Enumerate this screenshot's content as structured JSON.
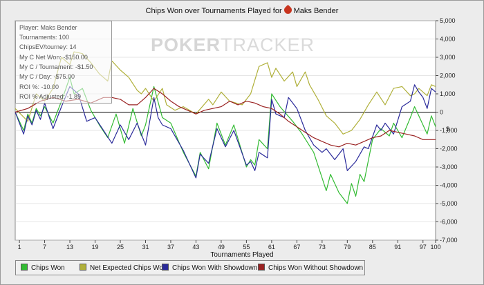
{
  "title_prefix": "Chips Won over Tournaments Played for",
  "player_name": "Maks Bender",
  "watermark": {
    "bold": "POKER",
    "light": "TRACKER"
  },
  "stats": [
    "Player: Maks Bender",
    "Tournaments: 100",
    "ChipsEV/tourney: 14",
    "My C Net Won: -$150.00",
    "My C / Tournament: -$1.50",
    "My C / Day: -$75.00",
    "ROI %: -10.00",
    "ROI % Adjusted: -1.89"
  ],
  "legend": {
    "chips_won": "Chips Won",
    "net_expected": "Net Expected Chips Won",
    "with_showdown": "Chips Won With Showdown",
    "without_showdown": "Chips Won Without Showdown"
  },
  "colors": {
    "chips_won": "#33bb33",
    "net_expected": "#b0b03a",
    "with_showdown": "#2a2a9a",
    "without_showdown": "#9a2222",
    "zero_line": "#000000",
    "grid": "#cccccc"
  },
  "chart_data": {
    "type": "line",
    "title": "Chips Won over Tournaments Played for Maks Bender",
    "xlabel": "Tournaments Played",
    "ylabel": "$",
    "xlim": [
      0,
      100
    ],
    "ylim": [
      -7000,
      5000
    ],
    "x_ticks": [
      1,
      7,
      13,
      19,
      25,
      31,
      37,
      43,
      49,
      55,
      61,
      67,
      73,
      79,
      85,
      91,
      97,
      100
    ],
    "y_ticks": [
      5000,
      4000,
      3000,
      2000,
      1000,
      0,
      -1000,
      -2000,
      -3000,
      -4000,
      -5000,
      -6000,
      -7000
    ],
    "y_tick_labels": [
      "5,000",
      "4,000",
      "3,000",
      "2,000",
      "1,000",
      "0",
      "-1,000",
      "-2,000",
      "-3,000",
      "-4,000",
      "-5,000",
      "-6,000",
      "-7,000"
    ],
    "grid": true,
    "legend_position": "bottom",
    "series": [
      {
        "key": "chips_won",
        "name": "Chips Won",
        "points": [
          [
            0,
            0
          ],
          [
            2,
            -1000
          ],
          [
            3,
            -100
          ],
          [
            4,
            -600
          ],
          [
            5,
            200
          ],
          [
            6,
            -200
          ],
          [
            7,
            300
          ],
          [
            9,
            -600
          ],
          [
            11,
            600
          ],
          [
            13,
            1900
          ],
          [
            14,
            1000
          ],
          [
            16,
            1300
          ],
          [
            18,
            100
          ],
          [
            20,
            -700
          ],
          [
            22,
            -1400
          ],
          [
            24,
            -100
          ],
          [
            26,
            -1700
          ],
          [
            28,
            200
          ],
          [
            30,
            -1300
          ],
          [
            31,
            -700
          ],
          [
            33,
            1400
          ],
          [
            35,
            -300
          ],
          [
            37,
            -600
          ],
          [
            40,
            -2200
          ],
          [
            43,
            -3500
          ],
          [
            44,
            -2200
          ],
          [
            46,
            -3100
          ],
          [
            48,
            -600
          ],
          [
            50,
            -1800
          ],
          [
            52,
            -700
          ],
          [
            55,
            -3000
          ],
          [
            56,
            -2600
          ],
          [
            57,
            -2900
          ],
          [
            58,
            -1500
          ],
          [
            60,
            -2000
          ],
          [
            61,
            1000
          ],
          [
            63,
            300
          ],
          [
            66,
            -500
          ],
          [
            68,
            -1100
          ],
          [
            71,
            -2200
          ],
          [
            74,
            -4300
          ],
          [
            75,
            -3400
          ],
          [
            77,
            -4400
          ],
          [
            79,
            -5000
          ],
          [
            80,
            -3900
          ],
          [
            81,
            -4600
          ],
          [
            82,
            -3400
          ],
          [
            83,
            -3800
          ],
          [
            85,
            -1500
          ],
          [
            87,
            -900
          ],
          [
            89,
            -1300
          ],
          [
            90,
            -600
          ],
          [
            92,
            -1400
          ],
          [
            94,
            -300
          ],
          [
            95,
            300
          ],
          [
            96,
            -200
          ],
          [
            98,
            -1200
          ],
          [
            99,
            -200
          ],
          [
            100,
            -800
          ]
        ]
      },
      {
        "key": "net_expected",
        "name": "Net Expected Chips Won",
        "points": [
          [
            0,
            200
          ],
          [
            3,
            -500
          ],
          [
            5,
            1000
          ],
          [
            7,
            600
          ],
          [
            9,
            1300
          ],
          [
            11,
            3000
          ],
          [
            13,
            2600
          ],
          [
            14,
            3300
          ],
          [
            16,
            3200
          ],
          [
            18,
            2700
          ],
          [
            20,
            2100
          ],
          [
            22,
            1700
          ],
          [
            23,
            2800
          ],
          [
            25,
            2300
          ],
          [
            27,
            1900
          ],
          [
            29,
            1200
          ],
          [
            30,
            1000
          ],
          [
            31,
            1300
          ],
          [
            33,
            600
          ],
          [
            35,
            1300
          ],
          [
            36,
            400
          ],
          [
            38,
            100
          ],
          [
            40,
            300
          ],
          [
            43,
            -100
          ],
          [
            46,
            700
          ],
          [
            47,
            400
          ],
          [
            49,
            1100
          ],
          [
            51,
            600
          ],
          [
            54,
            400
          ],
          [
            56,
            1000
          ],
          [
            58,
            2500
          ],
          [
            60,
            2700
          ],
          [
            61,
            1900
          ],
          [
            62,
            2400
          ],
          [
            64,
            1700
          ],
          [
            66,
            2200
          ],
          [
            67,
            1400
          ],
          [
            69,
            2200
          ],
          [
            70,
            1500
          ],
          [
            72,
            700
          ],
          [
            74,
            -200
          ],
          [
            76,
            -600
          ],
          [
            78,
            -1200
          ],
          [
            80,
            -1000
          ],
          [
            82,
            -400
          ],
          [
            84,
            400
          ],
          [
            86,
            1100
          ],
          [
            88,
            400
          ],
          [
            90,
            1300
          ],
          [
            92,
            1400
          ],
          [
            94,
            900
          ],
          [
            95,
            1000
          ],
          [
            96,
            1300
          ],
          [
            98,
            900
          ],
          [
            99,
            1500
          ],
          [
            100,
            1400
          ]
        ]
      },
      {
        "key": "with_showdown",
        "name": "Chips Won With Showdown",
        "points": [
          [
            0,
            0
          ],
          [
            2,
            -1200
          ],
          [
            3,
            -200
          ],
          [
            4,
            -700
          ],
          [
            5,
            100
          ],
          [
            6,
            -400
          ],
          [
            7,
            500
          ],
          [
            9,
            -900
          ],
          [
            11,
            300
          ],
          [
            13,
            1400
          ],
          [
            15,
            1000
          ],
          [
            17,
            -500
          ],
          [
            19,
            -300
          ],
          [
            21,
            -1000
          ],
          [
            23,
            -1700
          ],
          [
            25,
            -700
          ],
          [
            27,
            -1500
          ],
          [
            29,
            -600
          ],
          [
            31,
            -1800
          ],
          [
            33,
            800
          ],
          [
            34,
            -300
          ],
          [
            35,
            -700
          ],
          [
            37,
            -900
          ],
          [
            40,
            -2100
          ],
          [
            43,
            -3600
          ],
          [
            44,
            -2300
          ],
          [
            46,
            -2800
          ],
          [
            48,
            -900
          ],
          [
            50,
            -1900
          ],
          [
            52,
            -1000
          ],
          [
            55,
            -2900
          ],
          [
            56,
            -2700
          ],
          [
            57,
            -3200
          ],
          [
            58,
            -2200
          ],
          [
            60,
            -2500
          ],
          [
            61,
            700
          ],
          [
            62,
            -100
          ],
          [
            64,
            -300
          ],
          [
            65,
            800
          ],
          [
            67,
            200
          ],
          [
            69,
            -1000
          ],
          [
            71,
            -1800
          ],
          [
            73,
            -2200
          ],
          [
            74,
            -2000
          ],
          [
            76,
            -2600
          ],
          [
            78,
            -2000
          ],
          [
            79,
            -3200
          ],
          [
            81,
            -2700
          ],
          [
            83,
            -1900
          ],
          [
            84,
            -2000
          ],
          [
            86,
            -700
          ],
          [
            87,
            -1000
          ],
          [
            88,
            -600
          ],
          [
            90,
            -1200
          ],
          [
            92,
            300
          ],
          [
            94,
            600
          ],
          [
            95,
            1500
          ],
          [
            96,
            1100
          ],
          [
            97,
            800
          ],
          [
            98,
            200
          ],
          [
            99,
            1300
          ],
          [
            100,
            1100
          ]
        ]
      },
      {
        "key": "without_showdown",
        "name": "Chips Won Without Showdown",
        "points": [
          [
            0,
            0
          ],
          [
            3,
            200
          ],
          [
            6,
            600
          ],
          [
            9,
            800
          ],
          [
            12,
            600
          ],
          [
            15,
            700
          ],
          [
            18,
            500
          ],
          [
            21,
            800
          ],
          [
            23,
            800
          ],
          [
            25,
            700
          ],
          [
            27,
            400
          ],
          [
            29,
            400
          ],
          [
            31,
            800
          ],
          [
            33,
            1300
          ],
          [
            35,
            1000
          ],
          [
            37,
            600
          ],
          [
            39,
            300
          ],
          [
            41,
            100
          ],
          [
            43,
            -100
          ],
          [
            45,
            100
          ],
          [
            47,
            200
          ],
          [
            49,
            300
          ],
          [
            51,
            600
          ],
          [
            53,
            400
          ],
          [
            55,
            600
          ],
          [
            57,
            500
          ],
          [
            59,
            300
          ],
          [
            61,
            200
          ],
          [
            63,
            -100
          ],
          [
            65,
            -500
          ],
          [
            67,
            -800
          ],
          [
            69,
            -1100
          ],
          [
            71,
            -1400
          ],
          [
            73,
            -1600
          ],
          [
            75,
            -1800
          ],
          [
            77,
            -1900
          ],
          [
            79,
            -1700
          ],
          [
            81,
            -1800
          ],
          [
            83,
            -1600
          ],
          [
            85,
            -1400
          ],
          [
            87,
            -1300
          ],
          [
            89,
            -1000
          ],
          [
            91,
            -1100
          ],
          [
            93,
            -1200
          ],
          [
            95,
            -1300
          ],
          [
            97,
            -1500
          ],
          [
            99,
            -1500
          ],
          [
            100,
            -1500
          ]
        ]
      }
    ]
  }
}
